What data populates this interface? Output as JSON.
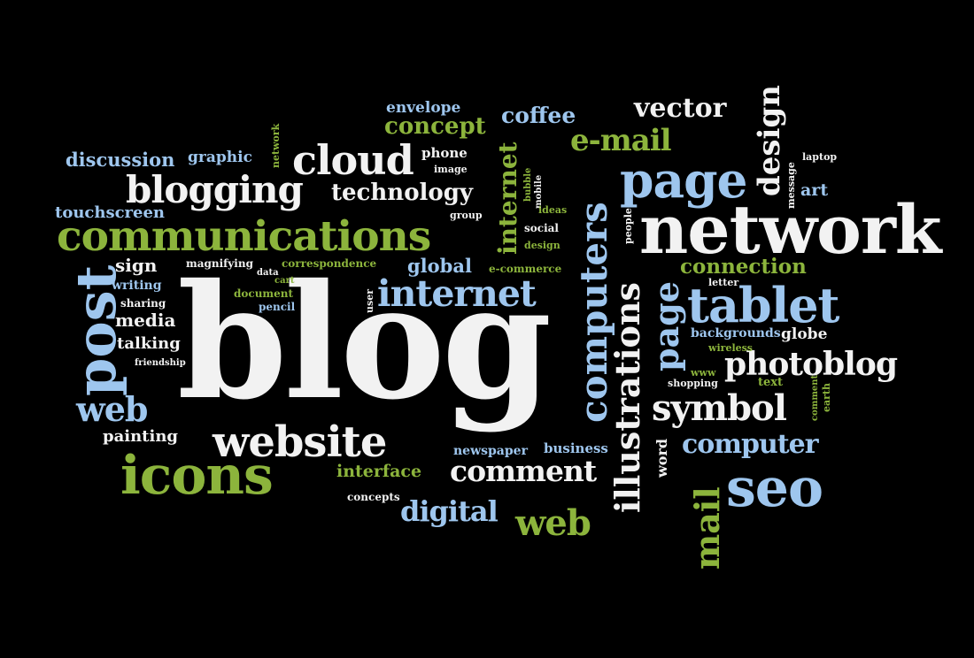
{
  "colors": {
    "background": "#000000",
    "white": "#f2f2f2",
    "blue": "#9ec6ee",
    "green": "#8cb43c"
  },
  "words": {
    "blog": "blog",
    "network": "network",
    "communications": "communications",
    "website": "website",
    "icons": "icons",
    "tablet": "tablet",
    "seo": "seo",
    "post": "post",
    "page": "page",
    "page2": "page",
    "cloud": "cloud",
    "blogging": "blogging",
    "internet": "internet",
    "internet2": "internet",
    "computers": "computers",
    "illustrations": "illustrations",
    "design": "design",
    "photoblog": "photoblog",
    "symbol": "symbol",
    "computer": "computer",
    "comment": "comment",
    "web": "web",
    "web2": "web",
    "mail": "mail",
    "digital": "digital",
    "vector": "vector",
    "email": "e-mail",
    "coffee": "coffee",
    "concept": "concept",
    "envelope": "envelope",
    "technology": "technology",
    "discussion": "discussion",
    "graphic": "graphic",
    "touchscreen": "touchscreen",
    "phone": "phone",
    "image": "image",
    "group": "group",
    "network_small": "network",
    "bubble": "bubble",
    "mobile": "mobile",
    "ideas": "ideas",
    "social": "social",
    "design_small": "design",
    "global": "global",
    "ecommerce": "e-commerce",
    "correspondence": "correspondence",
    "connection": "connection",
    "letter": "letter",
    "people": "people",
    "sign": "sign",
    "magnifying": "magnifying",
    "data": "data",
    "cart": "cart",
    "document": "document",
    "pencil": "pencil",
    "user": "user",
    "writing": "writing",
    "sharing": "sharing",
    "media": "media",
    "talking": "talking",
    "friendship": "friendship",
    "backgrounds": "backgrounds",
    "globe": "globe",
    "wireless": "wireless",
    "www": "www",
    "shopping": "shopping",
    "text": "text",
    "comment_small": "comment",
    "earth": "earth",
    "word": "word",
    "painting": "painting",
    "newspaper": "newspaper",
    "business": "business",
    "interface": "interface",
    "concepts": "concepts",
    "laptop": "laptop",
    "art": "art",
    "message": "message"
  }
}
